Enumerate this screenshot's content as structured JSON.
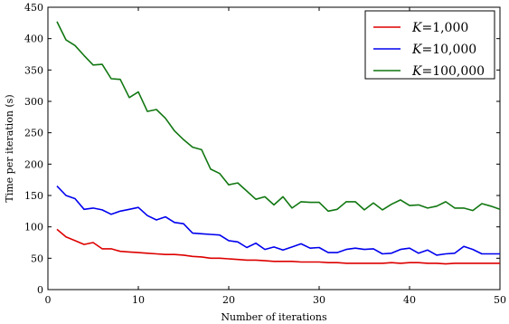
{
  "chart_data": {
    "type": "line",
    "xlabel": "Number of iterations",
    "ylabel": "Time per iteration (s)",
    "xlim": [
      0,
      50
    ],
    "ylim": [
      0,
      450
    ],
    "xticks": [
      "0",
      "10",
      "20",
      "30",
      "40",
      "50"
    ],
    "yticks": [
      "0",
      "50",
      "100",
      "150",
      "200",
      "250",
      "300",
      "350",
      "400",
      "450"
    ],
    "grid": false,
    "legend_position": "top-right",
    "x": [
      1,
      2,
      3,
      4,
      5,
      6,
      7,
      8,
      9,
      10,
      11,
      12,
      13,
      14,
      15,
      16,
      17,
      18,
      19,
      20,
      21,
      22,
      23,
      24,
      25,
      26,
      27,
      28,
      29,
      30,
      31,
      32,
      33,
      34,
      35,
      36,
      37,
      38,
      39,
      40,
      41,
      42,
      43,
      44,
      45,
      46,
      47,
      48,
      49,
      50
    ],
    "series": [
      {
        "name_prefix": "K",
        "name_suffix": "=1,000",
        "color": "#dd0000",
        "values": [
          96,
          84,
          78,
          72,
          75,
          65,
          65,
          61,
          60,
          59,
          58,
          57,
          56,
          56,
          55,
          53,
          52,
          50,
          50,
          49,
          48,
          47,
          47,
          46,
          45,
          45,
          45,
          44,
          44,
          44,
          43,
          43,
          42,
          42,
          42,
          42,
          42,
          43,
          42,
          43,
          43,
          42,
          42,
          41,
          42,
          42,
          42,
          42,
          42,
          42
        ]
      },
      {
        "name_prefix": "K",
        "name_suffix": "=10,000",
        "color": "#0000ee",
        "values": [
          165,
          150,
          145,
          128,
          130,
          127,
          120,
          125,
          128,
          131,
          118,
          111,
          116,
          107,
          105,
          90,
          89,
          88,
          87,
          78,
          76,
          67,
          74,
          64,
          68,
          63,
          68,
          73,
          66,
          67,
          59,
          59,
          64,
          66,
          64,
          65,
          57,
          58,
          64,
          66,
          58,
          63,
          55,
          57,
          58,
          69,
          64,
          57,
          57,
          57
        ]
      },
      {
        "name_prefix": "K",
        "name_suffix": "=100,000",
        "color": "#117711",
        "values": [
          427,
          398,
          389,
          373,
          358,
          359,
          336,
          335,
          306,
          315,
          284,
          287,
          273,
          253,
          239,
          227,
          223,
          192,
          185,
          167,
          170,
          157,
          144,
          148,
          135,
          148,
          130,
          140,
          139,
          139,
          125,
          128,
          140,
          140,
          127,
          138,
          127,
          136,
          143,
          134,
          135,
          130,
          133,
          140,
          130,
          130,
          126,
          137,
          133,
          128
        ]
      }
    ]
  }
}
